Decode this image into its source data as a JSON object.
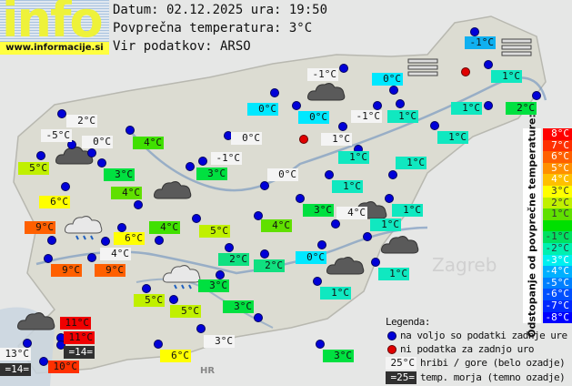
{
  "logo": {
    "text": "info",
    "url": "www.informacije.si"
  },
  "header": {
    "date_line": "Datum: 02.12.2025 ura: 19:50",
    "avg_line": "Povprečna temperatura: 3°C",
    "source_line": "Vir podatkov: ARSO"
  },
  "map_labels": {
    "zagreb": "Zagreb",
    "hr": "HR"
  },
  "stations": [
    {
      "t": "-1°C",
      "bg": "#10b0f0"
    },
    {
      "t": "0°C",
      "bg": "#00e8ff"
    },
    {
      "t": "1°C",
      "bg": "#10e8c0"
    },
    {
      "t": "-1°C",
      "bg": "#f4f4f4"
    },
    {
      "t": "0°C",
      "bg": "#00e8ff"
    },
    {
      "t": "0°C",
      "bg": "#00e8ff"
    },
    {
      "t": "-1°C",
      "bg": "#f4f4f4"
    },
    {
      "t": "1°C",
      "bg": "#10e8c0"
    },
    {
      "t": "1°C",
      "bg": "#10e8c0"
    },
    {
      "t": "2°C",
      "bg": "#00e040"
    },
    {
      "t": "1°C",
      "bg": "#10e8c0"
    },
    {
      "t": "2°C",
      "bg": "#f4f4f4"
    },
    {
      "t": "-5°C",
      "bg": "#f4f4f4"
    },
    {
      "t": "0°C",
      "bg": "#f4f4f4"
    },
    {
      "t": "4°C",
      "bg": "#40e000"
    },
    {
      "t": "0°C",
      "bg": "#f4f4f4"
    },
    {
      "t": "1°C",
      "bg": "#f4f4f4"
    },
    {
      "t": "5°C",
      "bg": "#c0f000"
    },
    {
      "t": "3°C",
      "bg": "#00e040"
    },
    {
      "t": "-1°C",
      "bg": "#f4f4f4"
    },
    {
      "t": "3°C",
      "bg": "#00e040"
    },
    {
      "t": "1°C",
      "bg": "#10e8c0"
    },
    {
      "t": "0°C",
      "bg": "#f4f4f4"
    },
    {
      "t": "1°C",
      "bg": "#10e8c0"
    },
    {
      "t": "4°C",
      "bg": "#60e000"
    },
    {
      "t": "6°C",
      "bg": "#ffff00"
    },
    {
      "t": "1°C",
      "bg": "#10e8c0"
    },
    {
      "t": "3°C",
      "bg": "#00e040"
    },
    {
      "t": "4°C",
      "bg": "#f4f4f4"
    },
    {
      "t": "1°C",
      "bg": "#10e8c0"
    },
    {
      "t": "9°C",
      "bg": "#ff6000"
    },
    {
      "t": "4°C",
      "bg": "#40e000"
    },
    {
      "t": "5°C",
      "bg": "#c0f000"
    },
    {
      "t": "4°C",
      "bg": "#60e000"
    },
    {
      "t": "1°C",
      "bg": "#10e8c0"
    },
    {
      "t": "6°C",
      "bg": "#ffff00"
    },
    {
      "t": "4°C",
      "bg": "#f4f4f4"
    },
    {
      "t": "2°C",
      "bg": "#10e080"
    },
    {
      "t": "2°C",
      "bg": "#10e080"
    },
    {
      "t": "0°C",
      "bg": "#00e8ff"
    },
    {
      "t": "9°C",
      "bg": "#ff6000"
    },
    {
      "t": "9°C",
      "bg": "#ff6000"
    },
    {
      "t": "1°C",
      "bg": "#10e8c0"
    },
    {
      "t": "3°C",
      "bg": "#00e040"
    },
    {
      "t": "1°C",
      "bg": "#10e8c0"
    },
    {
      "t": "5°C",
      "bg": "#c0f000"
    },
    {
      "t": "5°C",
      "bg": "#c0f000"
    },
    {
      "t": "3°C",
      "bg": "#00e040"
    },
    {
      "t": "11°C",
      "bg": "#f00000"
    },
    {
      "t": "11°C",
      "bg": "#f00000"
    },
    {
      "t": "=14=",
      "bg": "#303030"
    },
    {
      "t": "13°C",
      "bg": "#f4f4f4"
    },
    {
      "t": "=14=",
      "bg": "#303030"
    },
    {
      "t": "10°C",
      "bg": "#ff3000"
    },
    {
      "t": "3°C",
      "bg": "#f4f4f4"
    },
    {
      "t": "6°C",
      "bg": "#ffff00"
    },
    {
      "t": "3°C",
      "bg": "#00e040"
    }
  ],
  "scale": {
    "title": "Odstopanje od povprečne temperature:",
    "steps": [
      {
        "t": "8°C",
        "c": "#ff0000"
      },
      {
        "t": "7°C",
        "c": "#ff3000"
      },
      {
        "t": "6°C",
        "c": "#ff6000"
      },
      {
        "t": "5°C",
        "c": "#ff9000"
      },
      {
        "t": "4°C",
        "c": "#ffc000"
      },
      {
        "t": "3°C",
        "c": "#ffff00"
      },
      {
        "t": "2°C",
        "c": "#c0f000"
      },
      {
        "t": "1°C",
        "c": "#60e000"
      },
      {
        "t": "",
        "c": "#00e000"
      },
      {
        "t": "-1°C",
        "c": "#00e060"
      },
      {
        "t": "-2°C",
        "c": "#00f0b0"
      },
      {
        "t": "-3°C",
        "c": "#00f0f0"
      },
      {
        "t": "-4°C",
        "c": "#00b0ff"
      },
      {
        "t": "-5°C",
        "c": "#0080ff"
      },
      {
        "t": "-6°C",
        "c": "#0050ff"
      },
      {
        "t": "-7°C",
        "c": "#0028ff"
      },
      {
        "t": "-8°C",
        "c": "#0000ff"
      }
    ]
  },
  "legend": {
    "title": "Legenda:",
    "blue_dot": "na voljo so podatki zadnje ure",
    "red_dot": "ni podatka za zadnjo uro",
    "mountain_sample": "25°C",
    "mountain_text": "hribi / gore (belo ozadje)",
    "sea_sample": "=25=",
    "sea_text": "temp. morja (temno ozadje)"
  }
}
